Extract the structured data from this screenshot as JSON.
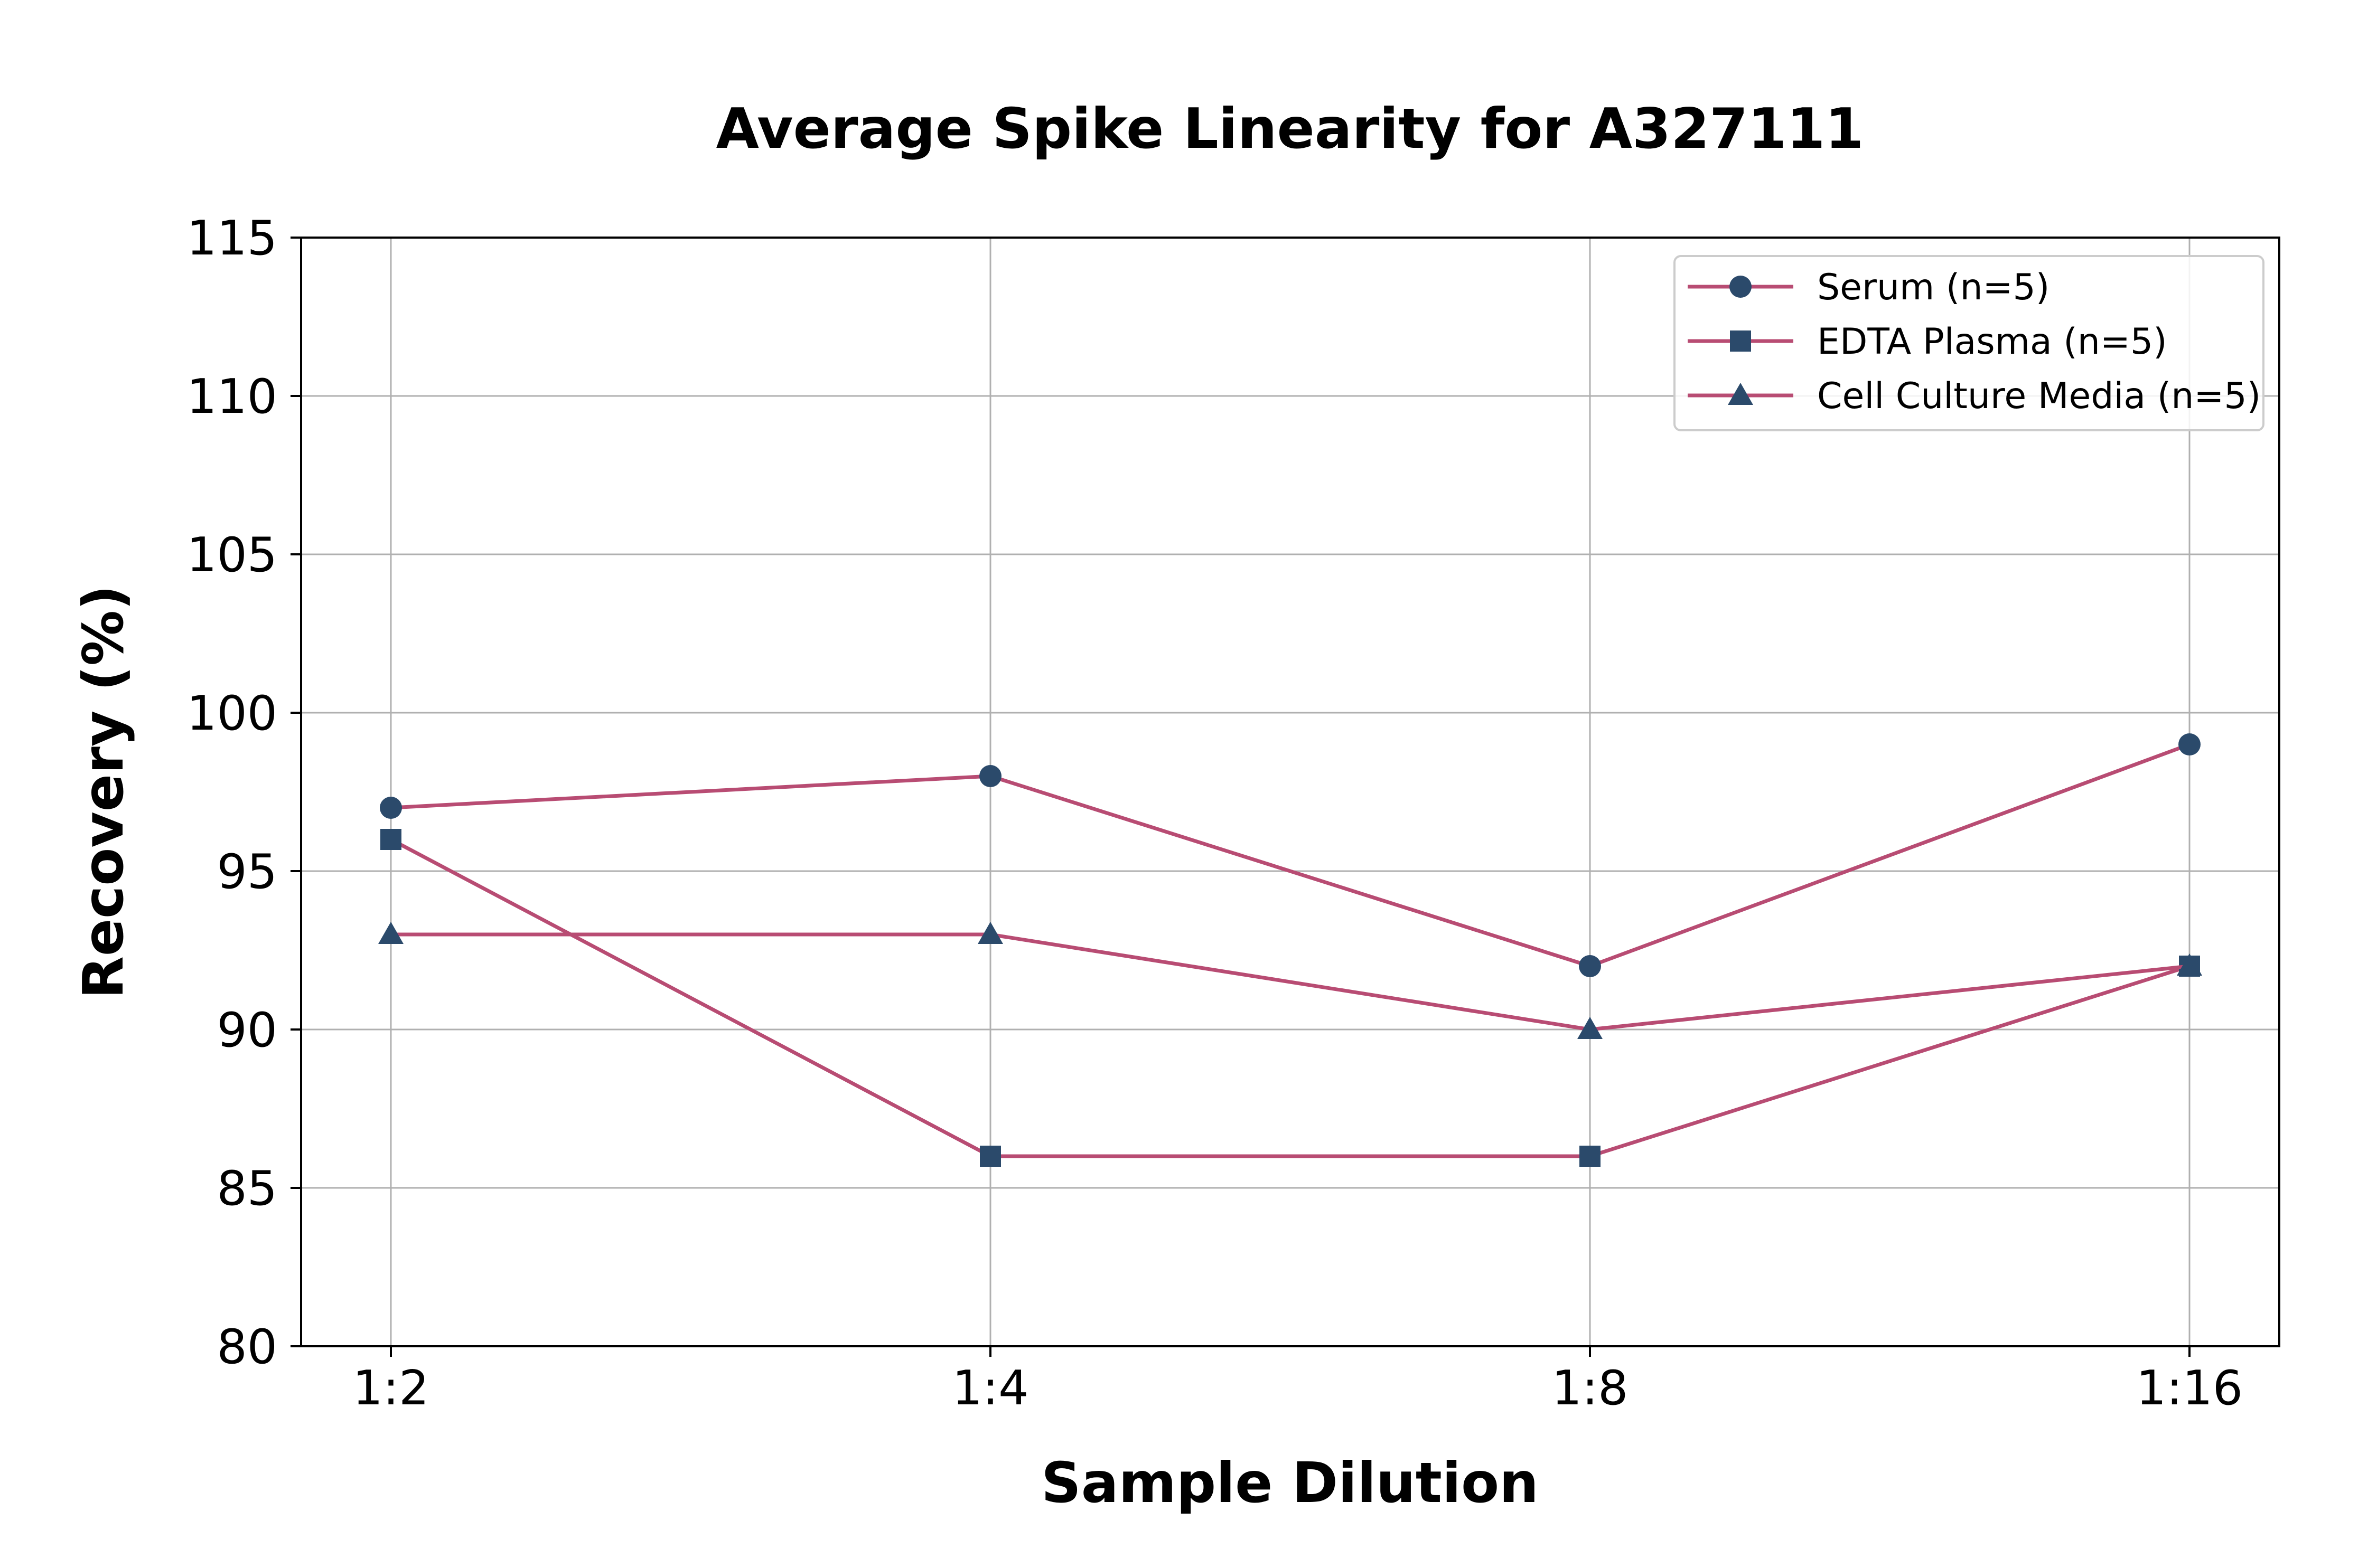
{
  "chart_data": {
    "type": "line",
    "title": "Average Spike Linearity for A327111",
    "xlabel": "Sample Dilution",
    "ylabel": "Recovery (%)",
    "categories": [
      "1:2",
      "1:4",
      "1:8",
      "1:16"
    ],
    "ylim": [
      80,
      115
    ],
    "yticks": [
      80,
      85,
      90,
      95,
      100,
      105,
      110,
      115
    ],
    "grid": true,
    "legend_position": "top-right",
    "line_color": "#b84c73",
    "marker_color": "#2b4a6b",
    "series": [
      {
        "name": "Serum (n=5)",
        "marker": "circle",
        "values": [
          97,
          98,
          92,
          99
        ]
      },
      {
        "name": "EDTA Plasma (n=5)",
        "marker": "square",
        "values": [
          96,
          86,
          86,
          92
        ]
      },
      {
        "name": "Cell Culture Media (n=5)",
        "marker": "triangle",
        "values": [
          93,
          93,
          90,
          92
        ]
      }
    ]
  }
}
